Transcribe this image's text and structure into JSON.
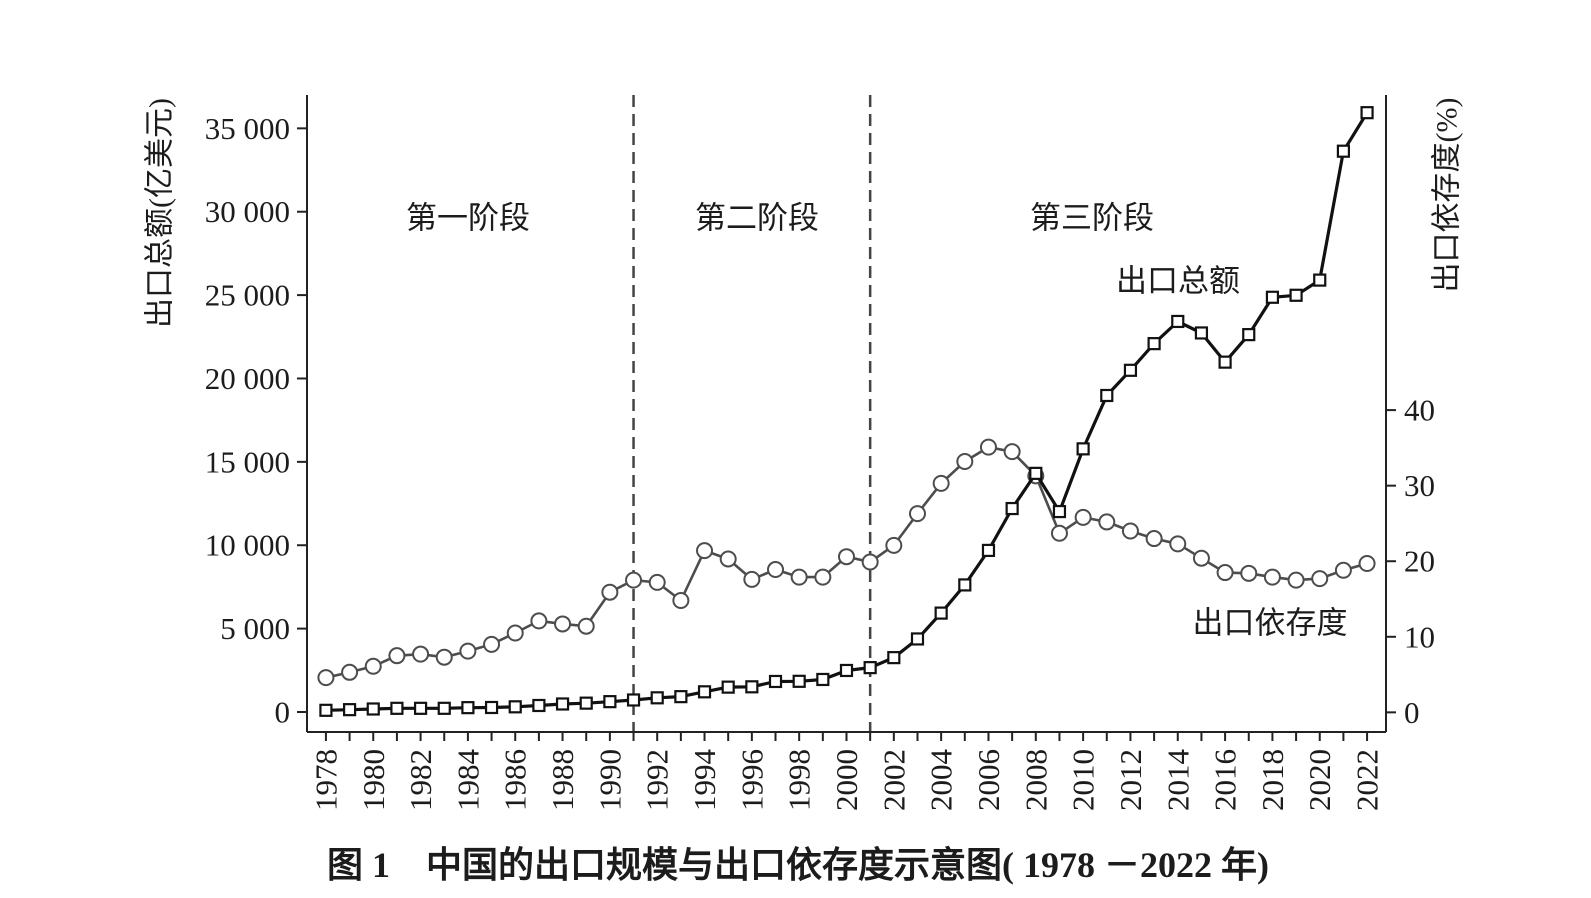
{
  "chart_data": {
    "type": "line",
    "title": "图 1　中国的出口规模与出口依存度示意图( 1978 －2022 年)",
    "xlabel": "",
    "x": [
      1978,
      1979,
      1980,
      1981,
      1982,
      1983,
      1984,
      1985,
      1986,
      1987,
      1988,
      1989,
      1990,
      1991,
      1992,
      1993,
      1994,
      1995,
      1996,
      1997,
      1998,
      1999,
      2000,
      2001,
      2002,
      2003,
      2004,
      2005,
      2006,
      2007,
      2008,
      2009,
      2010,
      2011,
      2012,
      2013,
      2014,
      2015,
      2016,
      2017,
      2018,
      2019,
      2020,
      2021,
      2022
    ],
    "xlim": [
      1977.2,
      2022.8
    ],
    "x_tick_labels": [
      "1978",
      "1980",
      "1982",
      "1984",
      "1986",
      "1988",
      "1990",
      "1992",
      "1994",
      "1996",
      "1998",
      "2000",
      "2002",
      "2004",
      "2006",
      "2008",
      "2010",
      "2012",
      "2014",
      "2016",
      "2018",
      "2020",
      "2022"
    ],
    "y_left": {
      "label": "出口总额(亿美元)",
      "ylim": [
        -1200,
        37000
      ],
      "ticks": [
        0,
        5000,
        10000,
        15000,
        20000,
        25000,
        30000,
        35000
      ],
      "tick_labels": [
        "0",
        "5 000",
        "10 000",
        "15 000",
        "20 000",
        "25 000",
        "30 000",
        "35 000"
      ]
    },
    "y_right": {
      "label": "出口依存度(%)",
      "ylim": [
        -2.6,
        81.7
      ],
      "ticks": [
        0,
        10,
        20,
        30,
        40
      ],
      "tick_labels": [
        "0",
        "10",
        "20",
        "30",
        "40"
      ]
    },
    "series": [
      {
        "name": "出口总额",
        "color": "#111111",
        "values": [
          100,
          140,
          180,
          220,
          220,
          220,
          260,
          270,
          310,
          390,
          480,
          530,
          620,
          720,
          850,
          920,
          1210,
          1490,
          1510,
          1830,
          1840,
          1950,
          2490,
          2660,
          3260,
          4380,
          5930,
          7620,
          9690,
          12200,
          14310,
          12020,
          15780,
          18980,
          20490,
          22090,
          23420,
          22730,
          20980,
          22630,
          24870,
          24990,
          25900,
          33630,
          35940
        ]
      },
      {
        "name": "出口依存度",
        "color": "#4d4d4d",
        "values": [
          4.6,
          5.3,
          6.1,
          7.5,
          7.7,
          7.3,
          8.1,
          9.0,
          10.5,
          12.1,
          11.7,
          11.4,
          15.9,
          17.5,
          17.2,
          14.8,
          21.4,
          20.3,
          17.6,
          18.9,
          17.9,
          17.9,
          20.6,
          19.9,
          22.1,
          26.3,
          30.3,
          33.2,
          35.1,
          34.5,
          31.3,
          23.7,
          25.8,
          25.2,
          24.0,
          23.0,
          22.3,
          20.4,
          18.5,
          18.4,
          17.9,
          17.5,
          17.7,
          18.8,
          19.7
        ]
      }
    ],
    "stages": [
      "第一阶段",
      "第二阶段",
      "第三阶段"
    ],
    "stage_dividers": [
      1991,
      2001
    ],
    "grid": false
  }
}
